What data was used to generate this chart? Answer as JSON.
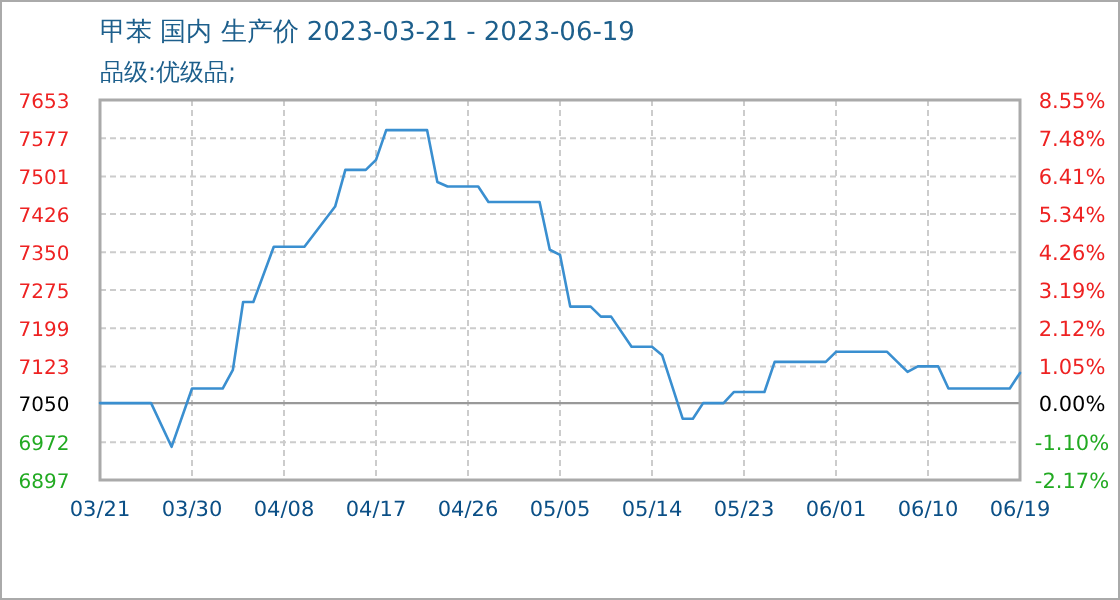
{
  "chart_data": {
    "type": "line",
    "title": "甲苯 国内 生产价 2023-03-21 - 2023-06-19",
    "subtitle": "品级:优级品;",
    "x": [
      "2023-03-21",
      "2023-03-26",
      "2023-03-28",
      "2023-03-30",
      "2023-04-02",
      "2023-04-03",
      "2023-04-04",
      "2023-04-05",
      "2023-04-07",
      "2023-04-10",
      "2023-04-13",
      "2023-04-14",
      "2023-04-16",
      "2023-04-17",
      "2023-04-18",
      "2023-04-22",
      "2023-04-23",
      "2023-04-24",
      "2023-04-27",
      "2023-04-28",
      "2023-05-03",
      "2023-05-04",
      "2023-05-05",
      "2023-05-06",
      "2023-05-08",
      "2023-05-09",
      "2023-05-10",
      "2023-05-12",
      "2023-05-14",
      "2023-05-15",
      "2023-05-17",
      "2023-05-18",
      "2023-05-19",
      "2023-05-21",
      "2023-05-22",
      "2023-05-25",
      "2023-05-26",
      "2023-05-31",
      "2023-06-01",
      "2023-06-06",
      "2023-06-08",
      "2023-06-09",
      "2023-06-11",
      "2023-06-12",
      "2023-06-18",
      "2023-06-19"
    ],
    "series": [
      {
        "color": "#3a8fd0",
        "values": [
          7050,
          7050,
          6963,
          7079,
          7079,
          7116,
          7251,
          7251,
          7361,
          7361,
          7441,
          7514,
          7514,
          7534,
          7593,
          7593,
          7490,
          7481,
          7481,
          7450,
          7450,
          7355,
          7345,
          7242,
          7242,
          7222,
          7222,
          7162,
          7162,
          7145,
          7019,
          7019,
          7050,
          7050,
          7072,
          7072,
          7132,
          7132,
          7152,
          7152,
          7112,
          7123,
          7123,
          7079,
          7079,
          7110
        ]
      }
    ],
    "xlim": [
      "2023-03-21",
      "2023-06-19"
    ],
    "xticks": [
      {
        "value": "2023-03-21",
        "label": "03/21"
      },
      {
        "value": "2023-03-30",
        "label": "03/30"
      },
      {
        "value": "2023-04-08",
        "label": "04/08"
      },
      {
        "value": "2023-04-17",
        "label": "04/17"
      },
      {
        "value": "2023-04-26",
        "label": "04/26"
      },
      {
        "value": "2023-05-05",
        "label": "05/05"
      },
      {
        "value": "2023-05-14",
        "label": "05/14"
      },
      {
        "value": "2023-05-23",
        "label": "05/23"
      },
      {
        "value": "2023-06-01",
        "label": "06/01"
      },
      {
        "value": "2023-06-10",
        "label": "06/10"
      },
      {
        "value": "2023-06-19",
        "label": "06/19"
      }
    ],
    "ylim": [
      6897,
      7653
    ],
    "yticks": [
      6897,
      6972,
      7050,
      7123,
      7199,
      7275,
      7350,
      7426,
      7501,
      7577,
      7653
    ],
    "y2lim": [
      -2.17,
      8.55
    ],
    "y2ticks": [
      {
        "value": -2.17,
        "label": "-2.17%"
      },
      {
        "value": -1.1,
        "label": "-1.10%"
      },
      {
        "value": 0,
        "label": "0.00%"
      },
      {
        "value": 1.05,
        "label": "1.05%"
      },
      {
        "value": 2.12,
        "label": "2.12%"
      },
      {
        "value": 3.19,
        "label": "3.19%"
      },
      {
        "value": 4.26,
        "label": "4.26%"
      },
      {
        "value": 5.34,
        "label": "5.34%"
      },
      {
        "value": 6.41,
        "label": "6.41%"
      },
      {
        "value": 7.48,
        "label": "7.48%"
      },
      {
        "value": 8.55,
        "label": "8.55%"
      }
    ],
    "ref_lines": [
      {
        "axis": "y",
        "value": 7050,
        "color": "#999999"
      }
    ],
    "grid": true,
    "line_style": "solid",
    "marker": "none"
  }
}
